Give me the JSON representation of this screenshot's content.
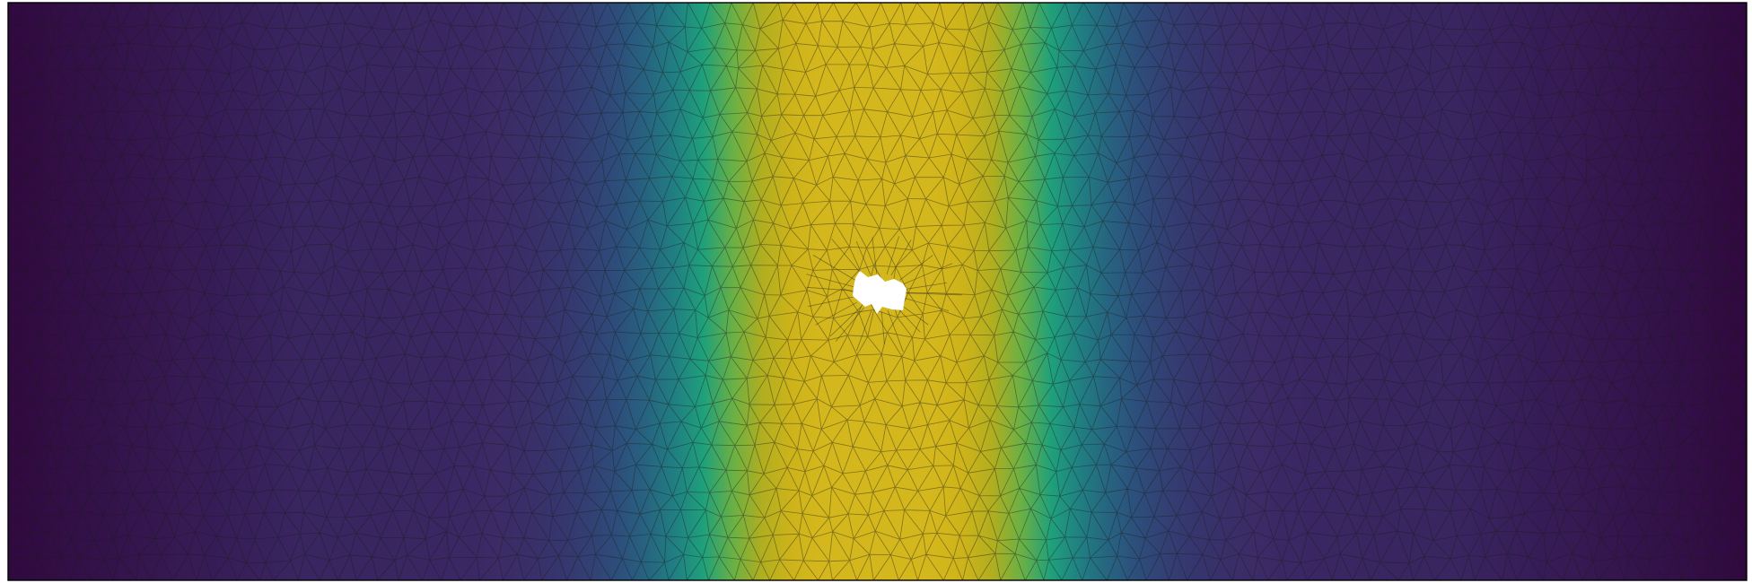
{
  "figure": {
    "kind": "finite-element mesh with scalar field",
    "colormap": "viridis",
    "colormap_stops": [
      "#30093f",
      "#3b2a66",
      "#2e4b7b",
      "#227483",
      "#1b9f7e",
      "#70b240",
      "#c2ad17",
      "#d4b71c"
    ],
    "background_color": "#ffffff",
    "mesh_edge_color": "#1a1a1a",
    "border_color": "#000000",
    "field": {
      "peak_position": 0.5,
      "peak_width": 0.08,
      "edge_value": 0.0,
      "peak_value": 1.0
    },
    "hole": {
      "present": true,
      "fill": "#ffffff"
    },
    "labels": []
  }
}
